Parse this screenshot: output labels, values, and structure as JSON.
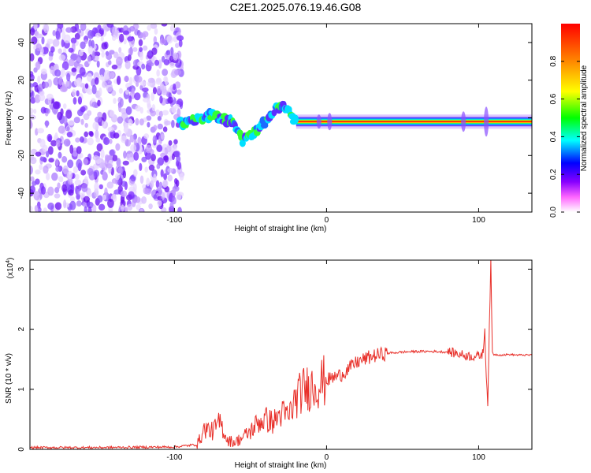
{
  "title": "C2E1.2025.076.19.46.G08",
  "chart_data": [
    {
      "type": "heatmap",
      "xlabel": "Height of straight line (km)",
      "ylabel": "Frequency (Hz)",
      "xlim": [
        -195,
        135
      ],
      "ylim": [
        -50,
        50
      ],
      "x_ticks": [
        -100,
        0,
        100
      ],
      "y_ticks": [
        -40,
        -20,
        0,
        20,
        40
      ],
      "colorbar": {
        "label": "Normalized spectral amplitude",
        "range": [
          0,
          1
        ],
        "ticks": [
          0.0,
          0.2,
          0.4,
          0.6,
          0.8
        ],
        "colors": [
          "#ffffff",
          "#ff66ff",
          "#8800ff",
          "#0000ff",
          "#00ffff",
          "#00ff00",
          "#ffff00",
          "#ff8800",
          "#ff0000"
        ]
      },
      "noise_region": {
        "x": [
          -195,
          -95
        ],
        "y": [
          -50,
          50
        ]
      },
      "signal_track": [
        {
          "x": -95,
          "y": -4
        },
        {
          "x": -90,
          "y": -1
        },
        {
          "x": -80,
          "y": 0
        },
        {
          "x": -75,
          "y": 2
        },
        {
          "x": -70,
          "y": 0
        },
        {
          "x": -60,
          "y": -3
        },
        {
          "x": -55,
          "y": -12
        },
        {
          "x": -45,
          "y": -6
        },
        {
          "x": -35,
          "y": 3
        },
        {
          "x": -30,
          "y": 7
        },
        {
          "x": -25,
          "y": 3
        },
        {
          "x": -20,
          "y": -2
        },
        {
          "x": 0,
          "y": -2
        },
        {
          "x": 80,
          "y": -2
        },
        {
          "x": 90,
          "y": -3
        },
        {
          "x": 105,
          "y": -2
        },
        {
          "x": 135,
          "y": -2
        }
      ]
    },
    {
      "type": "line",
      "xlabel": "Height of straight line (km)",
      "ylabel": "SNR (10 * v/v)",
      "y_exponent_label": "(x10",
      "y_exponent": "4",
      "y_exponent_close": ")",
      "xlim": [
        -195,
        135
      ],
      "ylim": [
        0,
        3.15
      ],
      "x_ticks": [
        -100,
        0,
        100
      ],
      "y_ticks": [
        0,
        1,
        2,
        3
      ],
      "color": "#e8302a",
      "series": [
        {
          "x": [
            -195,
            -150,
            -100,
            -85,
            -80,
            -75,
            -70,
            -65,
            -60,
            -55,
            -50,
            -45,
            -40,
            -35,
            -30,
            -25,
            -20,
            -15,
            -10,
            -5,
            0,
            5,
            10,
            15,
            20,
            25,
            30,
            40,
            50,
            60,
            70,
            80,
            85,
            90,
            95,
            100,
            103,
            104,
            105,
            106,
            107,
            108,
            109,
            110,
            115,
            120,
            125,
            135
          ],
          "y": [
            0.03,
            0.03,
            0.04,
            0.08,
            0.35,
            0.3,
            0.45,
            0.15,
            0.12,
            0.2,
            0.3,
            0.45,
            0.5,
            0.45,
            0.6,
            0.55,
            0.85,
            1.0,
            1.05,
            1.1,
            1.15,
            1.2,
            1.25,
            1.35,
            1.45,
            1.5,
            1.55,
            1.6,
            1.62,
            1.63,
            1.63,
            1.62,
            1.6,
            1.57,
            1.55,
            1.55,
            1.6,
            2.05,
            1.2,
            0.8,
            2.0,
            3.1,
            1.6,
            1.58,
            1.57,
            1.58,
            1.57,
            1.57
          ]
        }
      ]
    }
  ]
}
